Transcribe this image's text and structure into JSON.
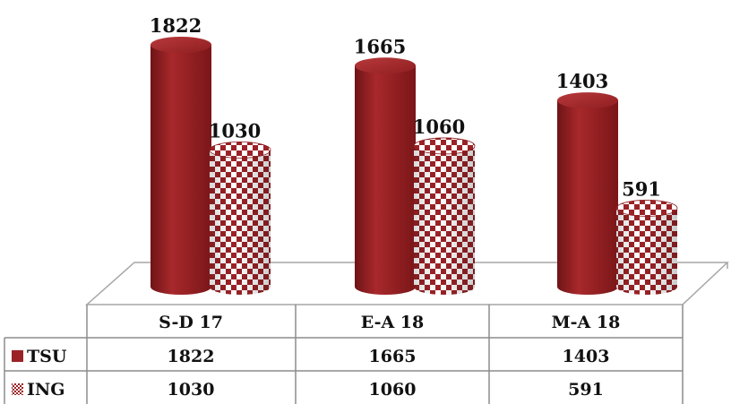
{
  "chart_data": {
    "type": "bar",
    "categories": [
      "S-D 17",
      "E-A 18",
      "M-A 18"
    ],
    "series": [
      {
        "name": "TSU",
        "values": [
          1822,
          1665,
          1403
        ],
        "color": "#9b2226",
        "pattern": "solid"
      },
      {
        "name": "ING",
        "values": [
          1030,
          1060,
          591
        ],
        "color": "#9b2226",
        "pattern": "checkerboard"
      }
    ],
    "ylim": [
      0,
      1822
    ],
    "grid": false,
    "legend": "data-table",
    "style": "3d-cylinder"
  }
}
